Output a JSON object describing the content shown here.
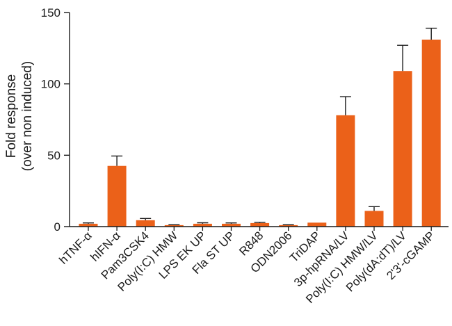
{
  "colors": {
    "bar": "#EB6119",
    "axis": "#1a1a1a",
    "error": "#1a1a1a"
  },
  "chart_data": {
    "type": "bar",
    "title": "",
    "xlabel": "",
    "ylabel": [
      "Fold response",
      "(over non induced)"
    ],
    "ylim": [
      0,
      150
    ],
    "yticks": [
      0,
      50,
      100,
      150
    ],
    "grid": false,
    "legend": "none",
    "categories": [
      "hTNF-α",
      "hIFN-α",
      "Pam3CSK4",
      "Poly(I:C) HMW",
      "LPS EK UP",
      "Fla ST UP",
      "R848",
      "ODN2006",
      "TriDAP",
      "3p-hpRNA/LV",
      "Poly(I:C) HMW/LV",
      "Poly(dA:dT)/LV",
      "2'3'-cGAMP"
    ],
    "series": [
      {
        "values": [
          2,
          42.5,
          4.5,
          1,
          2,
          2,
          2.5,
          1,
          2.8,
          78,
          11,
          109,
          131
        ],
        "error": [
          0.6,
          7,
          1.2,
          0.3,
          0.7,
          0.6,
          0.5,
          0.3,
          0,
          13,
          3,
          18,
          8
        ]
      }
    ]
  }
}
